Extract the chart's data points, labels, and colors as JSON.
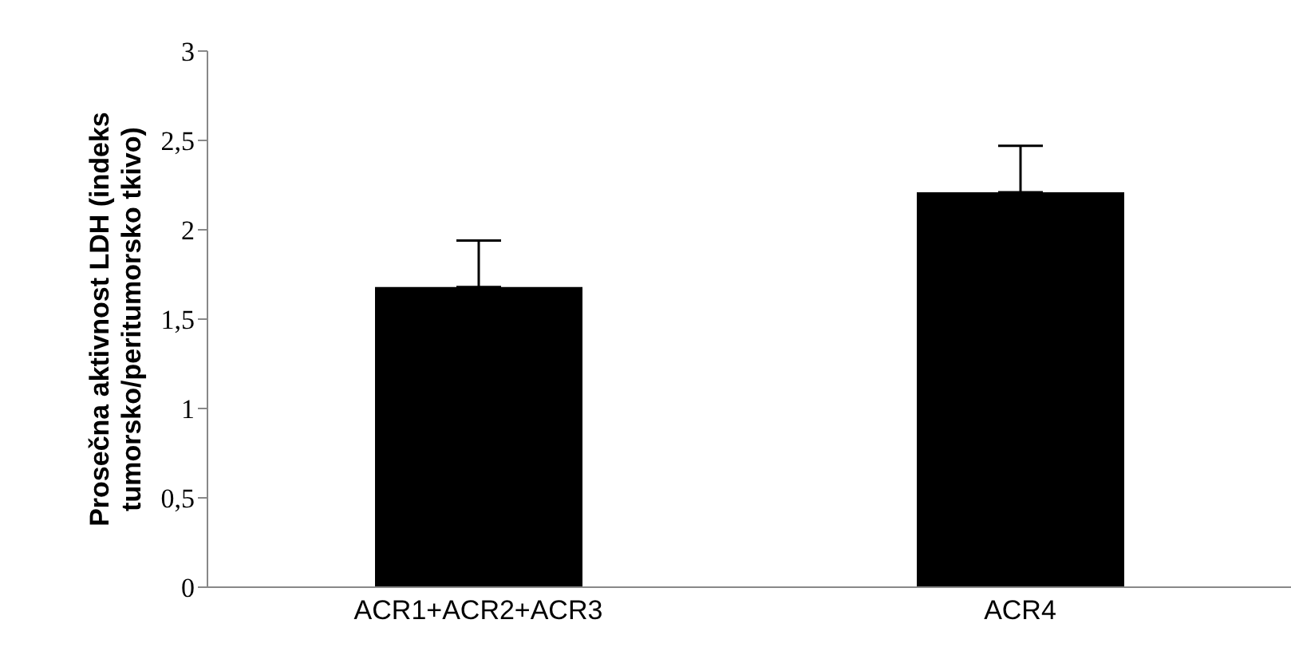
{
  "chart_data": {
    "type": "bar",
    "ylabel": "Prosečna aktivnost LDH (indeks\ntumorsko/peritumorsko tkivo)",
    "categories": [
      "ACR1+ACR2+ACR3",
      "ACR4"
    ],
    "values": [
      1.68,
      2.21
    ],
    "errors": [
      [
        1.68,
        1.94
      ],
      [
        2.21,
        2.47
      ]
    ],
    "color": "#000000",
    "ylim": [
      0,
      3
    ],
    "yticks": [
      0,
      {
        "value": 0.5,
        "label": "0,5"
      },
      1,
      {
        "value": 1.5,
        "label": "1,5"
      },
      2,
      {
        "value": 2.5,
        "label": "2,5"
      },
      3
    ],
    "grid": false
  }
}
